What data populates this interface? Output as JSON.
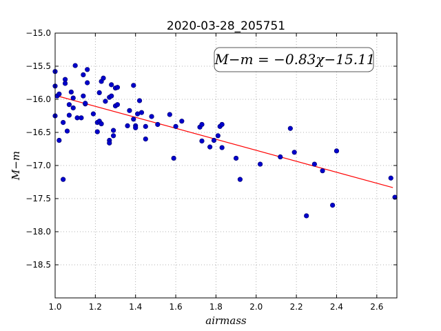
{
  "chart_data": {
    "type": "scatter",
    "title": "2020-03-28_205751",
    "xlabel": "airmass",
    "ylabel": "M−m",
    "annotation": "M−m = −0.83χ−15.11",
    "xlim": [
      1.0,
      2.7
    ],
    "ylim": [
      -19.0,
      -15.0
    ],
    "y_inverted": true,
    "grid": true,
    "xticks": [
      "1.0",
      "1.2",
      "1.4",
      "1.6",
      "1.8",
      "2.0",
      "2.2",
      "2.4",
      "2.6"
    ],
    "yticks": [
      "−15.0",
      "−15.5",
      "−16.0",
      "−16.5",
      "−17.0",
      "−17.5",
      "−18.0",
      "−18.5"
    ],
    "xtick_values": [
      1.0,
      1.2,
      1.4,
      1.6,
      1.8,
      2.0,
      2.2,
      2.4,
      2.6
    ],
    "ytick_values": [
      -15.0,
      -15.5,
      -16.0,
      -16.5,
      -17.0,
      -17.5,
      -18.0,
      -18.5
    ],
    "fit": {
      "slope": -0.83,
      "intercept": -15.11,
      "x_range": [
        1.0,
        2.68
      ],
      "color": "#ff0000"
    },
    "point_color": "#0000cc",
    "points": [
      [
        1.0,
        -15.58
      ],
      [
        1.0,
        -15.8
      ],
      [
        1.0,
        -16.25
      ],
      [
        1.01,
        -15.95
      ],
      [
        1.02,
        -15.92
      ],
      [
        1.02,
        -16.62
      ],
      [
        1.04,
        -16.35
      ],
      [
        1.04,
        -17.21
      ],
      [
        1.05,
        -15.7
      ],
      [
        1.05,
        -15.76
      ],
      [
        1.06,
        -16.48
      ],
      [
        1.07,
        -16.08
      ],
      [
        1.07,
        -16.24
      ],
      [
        1.08,
        -15.89
      ],
      [
        1.09,
        -15.98
      ],
      [
        1.09,
        -16.13
      ],
      [
        1.1,
        -15.49
      ],
      [
        1.11,
        -16.28
      ],
      [
        1.13,
        -16.28
      ],
      [
        1.14,
        -15.63
      ],
      [
        1.14,
        -15.95
      ],
      [
        1.15,
        -16.07
      ],
      [
        1.15,
        -16.06
      ],
      [
        1.16,
        -15.75
      ],
      [
        1.16,
        -15.55
      ],
      [
        1.19,
        -16.22
      ],
      [
        1.21,
        -16.35
      ],
      [
        1.21,
        -16.49
      ],
      [
        1.22,
        -15.9
      ],
      [
        1.22,
        -16.33
      ],
      [
        1.23,
        -15.73
      ],
      [
        1.23,
        -16.37
      ],
      [
        1.24,
        -15.68
      ],
      [
        1.25,
        -16.03
      ],
      [
        1.27,
        -15.97
      ],
      [
        1.27,
        -16.62
      ],
      [
        1.27,
        -16.66
      ],
      [
        1.28,
        -15.78
      ],
      [
        1.28,
        -15.95
      ],
      [
        1.29,
        -16.47
      ],
      [
        1.29,
        -16.55
      ],
      [
        1.3,
        -16.1
      ],
      [
        1.3,
        -15.83
      ],
      [
        1.31,
        -16.08
      ],
      [
        1.31,
        -15.82
      ],
      [
        1.36,
        -16.4
      ],
      [
        1.37,
        -16.17
      ],
      [
        1.39,
        -15.79
      ],
      [
        1.39,
        -16.3
      ],
      [
        1.4,
        -16.4
      ],
      [
        1.4,
        -16.43
      ],
      [
        1.41,
        -16.22
      ],
      [
        1.42,
        -16.02
      ],
      [
        1.43,
        -16.2
      ],
      [
        1.45,
        -16.41
      ],
      [
        1.45,
        -16.6
      ],
      [
        1.48,
        -16.26
      ],
      [
        1.51,
        -16.38
      ],
      [
        1.57,
        -16.23
      ],
      [
        1.59,
        -16.89
      ],
      [
        1.6,
        -16.41
      ],
      [
        1.63,
        -16.33
      ],
      [
        1.72,
        -16.42
      ],
      [
        1.73,
        -16.38
      ],
      [
        1.73,
        -16.63
      ],
      [
        1.77,
        -16.72
      ],
      [
        1.79,
        -16.62
      ],
      [
        1.81,
        -16.55
      ],
      [
        1.82,
        -16.41
      ],
      [
        1.83,
        -16.38
      ],
      [
        1.83,
        -16.73
      ],
      [
        1.9,
        -16.89
      ],
      [
        1.92,
        -17.21
      ],
      [
        2.02,
        -16.98
      ],
      [
        2.12,
        -16.87
      ],
      [
        2.17,
        -16.44
      ],
      [
        2.19,
        -16.8
      ],
      [
        2.25,
        -17.76
      ],
      [
        2.29,
        -16.98
      ],
      [
        2.33,
        -17.08
      ],
      [
        2.38,
        -17.6
      ],
      [
        2.4,
        -16.78
      ],
      [
        2.67,
        -17.19
      ],
      [
        2.69,
        -17.48
      ]
    ]
  }
}
